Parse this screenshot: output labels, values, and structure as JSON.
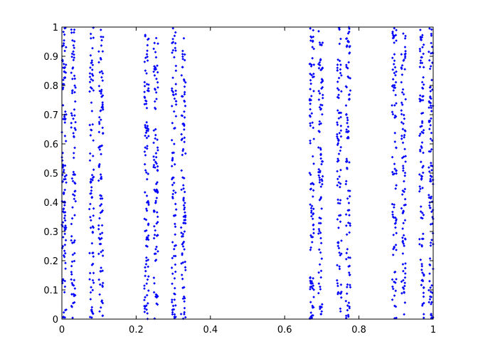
{
  "chart_data": {
    "type": "scatter",
    "title": "",
    "xlabel": "",
    "ylabel": "",
    "xlim": [
      0,
      1
    ],
    "ylim": [
      0,
      1
    ],
    "grid": false,
    "legend": "none",
    "marker": "dot",
    "color": "#0000ff",
    "x_ticks": [
      "0",
      "0.2",
      "0.4",
      "0.6",
      "0.8",
      "1"
    ],
    "y_ticks": [
      "0",
      "0.1",
      "0.2",
      "0.3",
      "0.4",
      "0.5",
      "0.6",
      "0.7",
      "0.8",
      "0.9",
      "1"
    ],
    "x_tick_values": [
      0,
      0.2,
      0.4,
      0.6,
      0.8,
      1
    ],
    "y_tick_values": [
      0,
      0.1,
      0.2,
      0.3,
      0.4,
      0.5,
      0.6,
      0.7,
      0.8,
      0.9,
      1
    ],
    "point_bands": [
      {
        "x_range": [
          0.0,
          0.012
        ],
        "count": 110
      },
      {
        "x_range": [
          0.025,
          0.037
        ],
        "count": 90
      },
      {
        "x_range": [
          0.074,
          0.086
        ],
        "count": 85
      },
      {
        "x_range": [
          0.099,
          0.111
        ],
        "count": 95
      },
      {
        "x_range": [
          0.222,
          0.234
        ],
        "count": 100
      },
      {
        "x_range": [
          0.247,
          0.259
        ],
        "count": 90
      },
      {
        "x_range": [
          0.296,
          0.308
        ],
        "count": 90
      },
      {
        "x_range": [
          0.321,
          0.333
        ],
        "count": 95
      },
      {
        "x_range": [
          0.667,
          0.679
        ],
        "count": 100
      },
      {
        "x_range": [
          0.691,
          0.703
        ],
        "count": 95
      },
      {
        "x_range": [
          0.741,
          0.753
        ],
        "count": 90
      },
      {
        "x_range": [
          0.765,
          0.777
        ],
        "count": 95
      },
      {
        "x_range": [
          0.889,
          0.901
        ],
        "count": 90
      },
      {
        "x_range": [
          0.914,
          0.926
        ],
        "count": 90
      },
      {
        "x_range": [
          0.963,
          0.975
        ],
        "count": 95
      },
      {
        "x_range": [
          0.988,
          1.0
        ],
        "count": 100
      }
    ]
  }
}
